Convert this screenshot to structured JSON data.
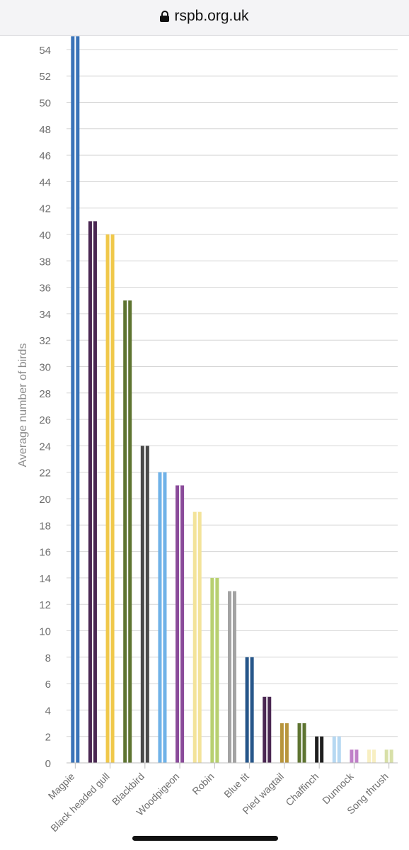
{
  "browser": {
    "url": "rspb.org.uk",
    "lock_icon": "lock-icon"
  },
  "chart_data": {
    "type": "bar",
    "ylabel": "Average number of birds",
    "xlabel": "",
    "ylim": [
      0,
      55
    ],
    "yticks": [
      0,
      2,
      4,
      6,
      8,
      10,
      12,
      14,
      16,
      18,
      20,
      22,
      24,
      26,
      28,
      30,
      32,
      34,
      36,
      38,
      40,
      42,
      44,
      46,
      48,
      50,
      52,
      54
    ],
    "grid": true,
    "categories": [
      "Magpie",
      "Black headed gull",
      "Blackbird",
      "Woodpigeon",
      "Robin",
      "Blue tit",
      "Pied wagtail",
      "Chaffinch",
      "Dunnock",
      "Song thrush"
    ],
    "bars": [
      {
        "value": 55,
        "color": "#3a73b8"
      },
      {
        "value": 41,
        "color": "#4a2752"
      },
      {
        "value": 40,
        "color": "#f0c84a"
      },
      {
        "value": 35,
        "color": "#5e7431"
      },
      {
        "value": 24,
        "color": "#4a4a4a"
      },
      {
        "value": 22,
        "color": "#6fb2e8"
      },
      {
        "value": 21,
        "color": "#8a4b9a"
      },
      {
        "value": 19,
        "color": "#f3e39a"
      },
      {
        "value": 14,
        "color": "#b8d070"
      },
      {
        "value": 13,
        "color": "#a3a3a3"
      },
      {
        "value": 8,
        "color": "#26568a"
      },
      {
        "value": 5,
        "color": "#4a2752"
      },
      {
        "value": 3,
        "color": "#b8953c"
      },
      {
        "value": 3,
        "color": "#5e7431"
      },
      {
        "value": 2,
        "color": "#1e1e1e"
      },
      {
        "value": 2,
        "color": "#b6d8f2"
      },
      {
        "value": 1,
        "color": "#c080c8"
      },
      {
        "value": 1,
        "color": "#f8efc2"
      },
      {
        "value": 1,
        "color": "#d8e0a8"
      }
    ]
  }
}
